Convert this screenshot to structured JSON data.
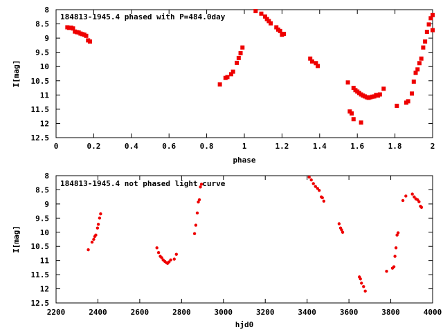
{
  "chart_data": [
    {
      "type": "scatter",
      "title": "184813-1945.4 phased with P=484.0day",
      "xlabel": "phase",
      "ylabel": "I[mag]",
      "xlim": [
        0,
        2
      ],
      "ylim": [
        12.5,
        8
      ],
      "y_inverted": true,
      "xticks": [
        "0",
        "0.2",
        "0.4",
        "0.6",
        "0.8",
        "1",
        "1.2",
        "1.4",
        "1.6",
        "1.8",
        "2"
      ],
      "yticks": [
        "8",
        "8.5",
        "9",
        "9.5",
        "10",
        "10.5",
        "11",
        "11.5",
        "12",
        "12.5"
      ],
      "color": "#ee0000",
      "grid": false,
      "series": [
        {
          "points": [
            [
              0.06,
              8.62
            ],
            [
              0.07,
              8.64
            ],
            [
              0.08,
              8.63
            ],
            [
              0.09,
              8.66
            ],
            [
              0.1,
              8.77
            ],
            [
              0.11,
              8.79
            ],
            [
              0.12,
              8.8
            ],
            [
              0.13,
              8.84
            ],
            [
              0.14,
              8.86
            ],
            [
              0.15,
              8.88
            ],
            [
              0.16,
              8.92
            ],
            [
              0.17,
              9.08
            ],
            [
              0.18,
              9.12
            ],
            [
              0.87,
              10.63
            ],
            [
              0.9,
              10.4
            ],
            [
              0.91,
              10.37
            ],
            [
              0.93,
              10.27
            ],
            [
              0.94,
              10.18
            ],
            [
              0.96,
              9.87
            ],
            [
              0.97,
              9.7
            ],
            [
              0.98,
              9.53
            ],
            [
              0.99,
              9.33
            ],
            [
              1.06,
              8.05
            ],
            [
              1.09,
              8.14
            ],
            [
              1.11,
              8.24
            ],
            [
              1.12,
              8.33
            ],
            [
              1.13,
              8.4
            ],
            [
              1.14,
              8.48
            ],
            [
              1.17,
              8.62
            ],
            [
              1.18,
              8.7
            ],
            [
              1.19,
              8.75
            ],
            [
              1.2,
              8.88
            ],
            [
              1.21,
              8.85
            ],
            [
              1.35,
              9.72
            ],
            [
              1.36,
              9.82
            ],
            [
              1.38,
              9.88
            ],
            [
              1.39,
              9.98
            ],
            [
              1.55,
              10.56
            ],
            [
              1.56,
              11.58
            ],
            [
              1.57,
              11.65
            ],
            [
              1.58,
              10.75
            ],
            [
              1.58,
              11.85
            ],
            [
              1.59,
              10.83
            ],
            [
              1.6,
              10.88
            ],
            [
              1.61,
              10.93
            ],
            [
              1.62,
              11.97
            ],
            [
              1.62,
              10.98
            ],
            [
              1.63,
              11.02
            ],
            [
              1.64,
              11.05
            ],
            [
              1.65,
              11.08
            ],
            [
              1.66,
              11.1
            ],
            [
              1.67,
              11.08
            ],
            [
              1.68,
              11.06
            ],
            [
              1.69,
              11.05
            ],
            [
              1.7,
              11.0
            ],
            [
              1.71,
              11.02
            ],
            [
              1.72,
              10.98
            ],
            [
              1.74,
              10.78
            ],
            [
              1.81,
              11.38
            ],
            [
              1.86,
              11.27
            ],
            [
              1.87,
              11.22
            ],
            [
              1.89,
              10.95
            ],
            [
              1.9,
              10.53
            ],
            [
              1.91,
              10.22
            ],
            [
              1.92,
              10.1
            ],
            [
              1.93,
              9.88
            ],
            [
              1.94,
              9.72
            ],
            [
              1.95,
              9.33
            ],
            [
              1.96,
              9.12
            ],
            [
              1.97,
              8.78
            ],
            [
              1.98,
              8.52
            ],
            [
              1.99,
              8.3
            ],
            [
              2.0,
              8.19
            ],
            [
              2.0,
              8.72
            ]
          ]
        }
      ]
    },
    {
      "type": "scatter",
      "title": "184813-1945.4 not phased light curve",
      "xlabel": "hjd0",
      "ylabel": "I[mag]",
      "xlim": [
        2200,
        4000
      ],
      "ylim": [
        12.5,
        8
      ],
      "y_inverted": true,
      "xticks": [
        "2200",
        "2400",
        "2600",
        "2800",
        "3000",
        "3200",
        "3400",
        "3600",
        "3800",
        "4000"
      ],
      "yticks": [
        "8",
        "8.5",
        "9",
        "9.5",
        "10",
        "10.5",
        "11",
        "11.5",
        "12",
        "12.5"
      ],
      "color": "#ee0000",
      "grid": false,
      "series": [
        {
          "points": [
            [
              2354,
              10.62
            ],
            [
              2372,
              10.35
            ],
            [
              2380,
              10.25
            ],
            [
              2385,
              10.15
            ],
            [
              2390,
              10.1
            ],
            [
              2398,
              9.85
            ],
            [
              2402,
              9.72
            ],
            [
              2408,
              9.5
            ],
            [
              2413,
              9.35
            ],
            [
              2682,
              10.55
            ],
            [
              2690,
              10.72
            ],
            [
              2698,
              10.85
            ],
            [
              2705,
              10.9
            ],
            [
              2712,
              10.98
            ],
            [
              2720,
              11.03
            ],
            [
              2728,
              11.08
            ],
            [
              2733,
              11.1
            ],
            [
              2740,
              11.05
            ],
            [
              2748,
              10.98
            ],
            [
              2765,
              10.95
            ],
            [
              2775,
              10.78
            ],
            [
              2862,
              10.05
            ],
            [
              2868,
              9.75
            ],
            [
              2875,
              9.32
            ],
            [
              2880,
              8.93
            ],
            [
              2885,
              8.85
            ],
            [
              2890,
              8.4
            ],
            [
              2895,
              8.3
            ],
            [
              3410,
              8.05
            ],
            [
              3420,
              8.15
            ],
            [
              3430,
              8.28
            ],
            [
              3440,
              8.38
            ],
            [
              3450,
              8.45
            ],
            [
              3458,
              8.52
            ],
            [
              3468,
              8.75
            ],
            [
              3473,
              8.78
            ],
            [
              3480,
              8.9
            ],
            [
              3553,
              9.7
            ],
            [
              3560,
              9.85
            ],
            [
              3565,
              9.92
            ],
            [
              3570,
              10.0
            ],
            [
              3650,
              11.58
            ],
            [
              3655,
              11.65
            ],
            [
              3660,
              11.8
            ],
            [
              3670,
              11.92
            ],
            [
              3678,
              12.08
            ],
            [
              3780,
              11.38
            ],
            [
              3808,
              11.27
            ],
            [
              3815,
              11.22
            ],
            [
              3820,
              10.85
            ],
            [
              3825,
              10.55
            ],
            [
              3830,
              10.1
            ],
            [
              3835,
              10.02
            ],
            [
              3858,
              8.88
            ],
            [
              3872,
              8.72
            ],
            [
              3903,
              8.65
            ],
            [
              3912,
              8.75
            ],
            [
              3920,
              8.82
            ],
            [
              3928,
              8.85
            ],
            [
              3935,
              8.92
            ],
            [
              3942,
              9.08
            ],
            [
              3947,
              9.12
            ]
          ]
        }
      ]
    }
  ]
}
